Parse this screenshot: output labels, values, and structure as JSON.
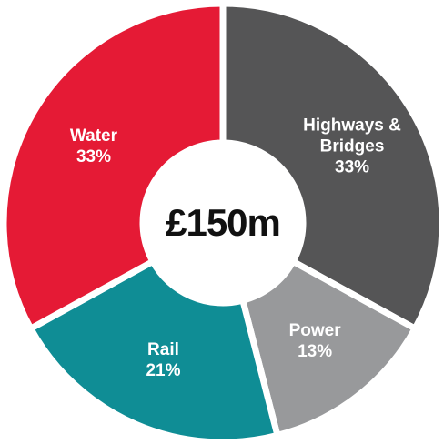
{
  "chart_data": {
    "type": "donut",
    "center_label": "£150m",
    "categories": [
      "Highways & Bridges",
      "Power",
      "Rail",
      "Water"
    ],
    "values": [
      33,
      13,
      21,
      33
    ],
    "value_labels": [
      "33%",
      "13%",
      "21%",
      "33%"
    ],
    "colors": [
      "#555556",
      "#98999b",
      "#0f8d95",
      "#e51a35"
    ]
  }
}
